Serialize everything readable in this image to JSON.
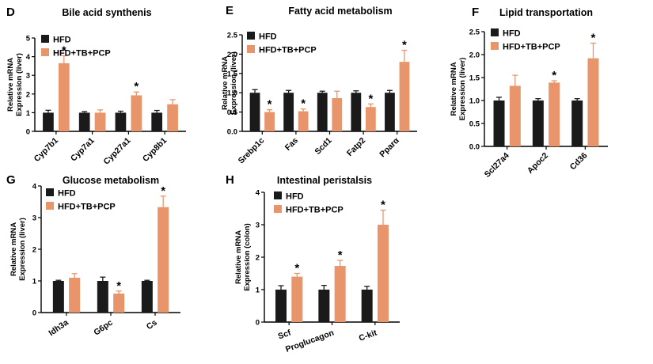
{
  "colors": {
    "HFD": "#1a1a1a",
    "HFD+TB+PCP": "#e8956b"
  },
  "chart_data": [
    {
      "id": "D",
      "panel_label": "D",
      "type": "bar",
      "title": "Bile acid synthenis",
      "ylabel": [
        "Relative mRNA",
        "Expression (liver)"
      ],
      "ylim": [
        0,
        5
      ],
      "yticks": [
        0,
        1,
        2,
        3,
        4,
        5
      ],
      "categories": [
        "Cyp7b1",
        "Cyp7a1",
        "Cyp27a1",
        "Cyp8b1"
      ],
      "series": [
        {
          "name": "HFD",
          "values": [
            1.0,
            1.0,
            1.0,
            1.0
          ],
          "errors": [
            0.13,
            0.06,
            0.08,
            0.12
          ]
        },
        {
          "name": "HFD+TB+PCP",
          "values": [
            3.65,
            1.0,
            1.93,
            1.45
          ],
          "errors": [
            0.4,
            0.15,
            0.18,
            0.25
          ]
        }
      ],
      "significance": [
        true,
        false,
        true,
        false
      ],
      "legend": "top-left"
    },
    {
      "id": "E",
      "panel_label": "E",
      "type": "bar",
      "title": "Fatty acid metabolism",
      "ylabel": [
        "Relative mRNA",
        "Expression (liver)"
      ],
      "ylim": [
        0,
        2.5
      ],
      "yticks": [
        0.0,
        0.5,
        1.0,
        1.5,
        2.0,
        2.5
      ],
      "categories": [
        "Srebp1c",
        "Fas",
        "Scd1",
        "Fatp2",
        "Pparα"
      ],
      "series": [
        {
          "name": "HFD",
          "values": [
            1.0,
            1.0,
            1.0,
            1.0,
            1.0
          ],
          "errors": [
            0.08,
            0.06,
            0.04,
            0.05,
            0.06
          ]
        },
        {
          "name": "HFD+TB+PCP",
          "values": [
            0.5,
            0.52,
            0.86,
            0.63,
            1.8
          ],
          "errors": [
            0.06,
            0.06,
            0.18,
            0.08,
            0.3
          ]
        }
      ],
      "significance": [
        true,
        true,
        false,
        true,
        true
      ],
      "legend": "top-left"
    },
    {
      "id": "F",
      "panel_label": "F",
      "type": "bar",
      "title": "Lipid transportation",
      "ylabel": [
        "Relative mRNA",
        "Expression (liver)"
      ],
      "ylim": [
        0,
        2.5
      ],
      "yticks": [
        0.0,
        0.5,
        1.0,
        1.5,
        2.0,
        2.5
      ],
      "categories": [
        "Scl27a4",
        "Apoc2",
        "Cd36"
      ],
      "series": [
        {
          "name": "HFD",
          "values": [
            1.0,
            1.0,
            1.0
          ],
          "errors": [
            0.07,
            0.04,
            0.04
          ]
        },
        {
          "name": "HFD+TB+PCP",
          "values": [
            1.32,
            1.39,
            1.92
          ],
          "errors": [
            0.23,
            0.04,
            0.33
          ]
        }
      ],
      "significance": [
        false,
        true,
        true
      ],
      "legend": "top-left"
    },
    {
      "id": "G",
      "panel_label": "G",
      "type": "bar",
      "title": "Glucose metabolism",
      "ylabel": [
        "Relative mRNA",
        "Expression (liver)"
      ],
      "ylim": [
        0,
        4
      ],
      "yticks": [
        0,
        1,
        2,
        3,
        4
      ],
      "categories": [
        "Idh3a",
        "G6pc",
        "Cs"
      ],
      "series": [
        {
          "name": "HFD",
          "values": [
            1.0,
            1.0,
            1.0
          ],
          "errors": [
            0.02,
            0.12,
            0.02
          ]
        },
        {
          "name": "HFD+TB+PCP",
          "values": [
            1.1,
            0.6,
            3.33
          ],
          "errors": [
            0.13,
            0.08,
            0.35
          ]
        }
      ],
      "significance": [
        false,
        true,
        true
      ],
      "legend": "top-left"
    },
    {
      "id": "H",
      "panel_label": "H",
      "type": "bar",
      "title": "Intestinal peristalsis",
      "ylabel": [
        "Relative mRNA",
        "Expression (colon)"
      ],
      "ylim": [
        0,
        4
      ],
      "yticks": [
        0,
        1,
        2,
        3,
        4
      ],
      "categories": [
        "Scf",
        "Proglucagon",
        "C-kit"
      ],
      "series": [
        {
          "name": "HFD",
          "values": [
            1.0,
            1.0,
            1.0
          ],
          "errors": [
            0.12,
            0.13,
            0.1
          ]
        },
        {
          "name": "HFD+TB+PCP",
          "values": [
            1.4,
            1.73,
            3.0
          ],
          "errors": [
            0.1,
            0.17,
            0.45
          ]
        }
      ],
      "significance": [
        true,
        true,
        true
      ],
      "legend": "top-left"
    }
  ]
}
